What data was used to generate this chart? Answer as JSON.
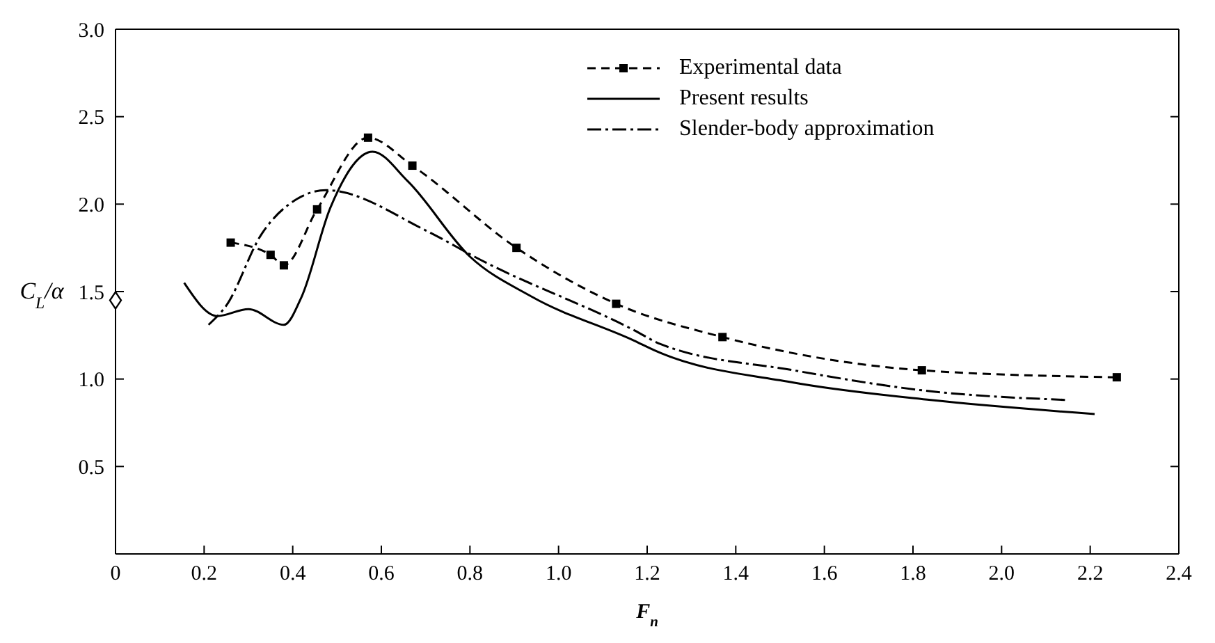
{
  "chart_data": {
    "type": "line",
    "xlabel": "F$_{n}$",
    "ylabel": "C$_{L}$/α",
    "xlim": [
      0,
      2.4
    ],
    "xticks": [
      0,
      0.2,
      0.4,
      0.6,
      0.8,
      {
        "value": 1,
        "label": "1.0"
      },
      1.2,
      1.4,
      1.6,
      1.8,
      {
        "value": 2,
        "label": "2.0"
      },
      2.2,
      2.4
    ],
    "ylim": [
      0,
      3
    ],
    "yticks": [
      0.5,
      {
        "value": 1,
        "label": "1.0"
      },
      1.5,
      {
        "value": 2,
        "label": "2.0"
      },
      2.5,
      {
        "value": 3,
        "label": "3.0"
      }
    ],
    "legend": "top right",
    "grid": false,
    "series": [
      {
        "name": "Experimental data",
        "color": "#000000",
        "marker": "square",
        "line_style": "dashed",
        "x": [
          0.26,
          0.35,
          0.38,
          0.455,
          0.57,
          0.67,
          0.905,
          1.13,
          1.37,
          1.82,
          2.26
        ],
        "values": [
          1.78,
          1.71,
          1.65,
          1.97,
          2.38,
          2.22,
          1.75,
          1.43,
          1.24,
          1.05,
          1.01
        ]
      },
      {
        "name": "Present results",
        "color": "#000000",
        "marker": "none",
        "line_style": "solid",
        "x": [
          0.155,
          0.23,
          0.3,
          0.38,
          0.42,
          0.485,
          0.58,
          0.66,
          0.8,
          0.94,
          1.17,
          1.22,
          1.53,
          1.84,
          2.21
        ],
        "values": [
          1.55,
          1.36,
          1.4,
          1.31,
          1.47,
          1.98,
          2.3,
          2.13,
          1.7,
          1.47,
          1.22,
          1.16,
          0.98,
          0.88,
          0.8
        ]
      },
      {
        "name": "Slender-body approximation",
        "color": "#000000",
        "marker": "none",
        "line_style": "dashdot",
        "x": [
          0.21,
          0.25,
          0.33,
          0.41,
          0.475,
          0.7,
          0.825,
          1.17,
          1.23,
          1.53,
          1.84,
          2.15
        ],
        "values": [
          1.31,
          1.42,
          1.83,
          2.03,
          2.08,
          1.85,
          1.68,
          1.28,
          1.2,
          1.05,
          0.93,
          0.88
        ]
      },
      {
        "type": "scatter",
        "color": "#000000",
        "marker": "diamond",
        "x": [
          0
        ],
        "values": [
          1.45
        ]
      }
    ]
  }
}
